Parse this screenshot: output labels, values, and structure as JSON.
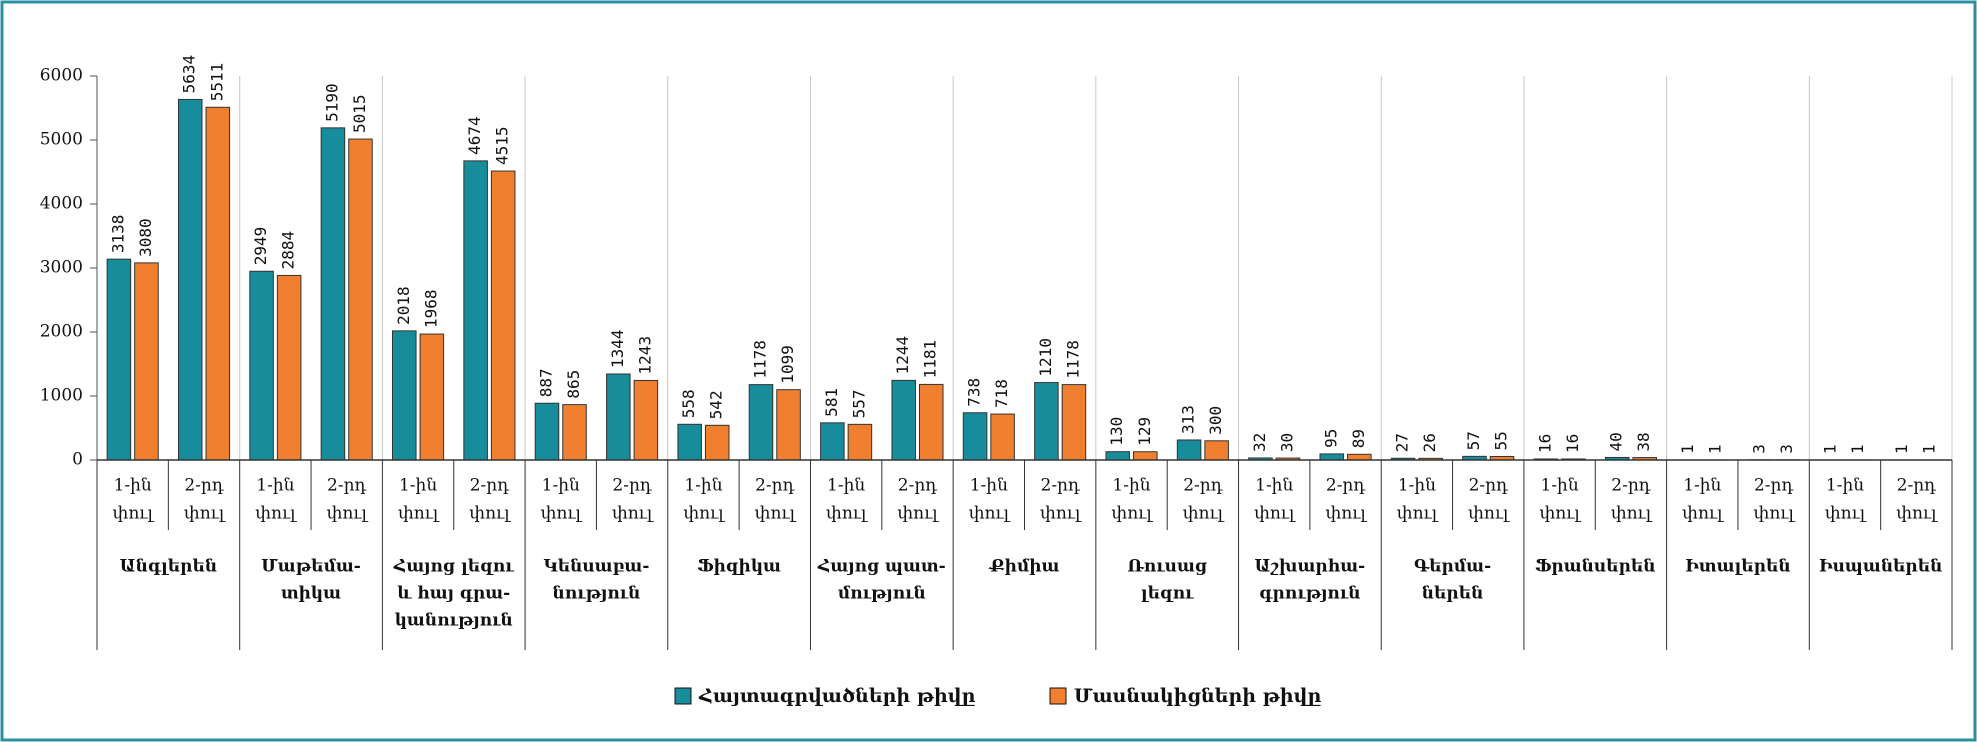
{
  "chart_data": {
    "type": "bar",
    "groups": [
      [
        "Անգլերեն"
      ],
      [
        "Մաթեմա-",
        "տիկա"
      ],
      [
        "Հայոց լեզու",
        "և հայ գրա-",
        "կանություն"
      ],
      [
        "Կենսաբա-",
        "նություն"
      ],
      [
        "Ֆիզիկա"
      ],
      [
        "Հայոց պատ-",
        "մություն"
      ],
      [
        "Քիմիա"
      ],
      [
        "Ռուսաց",
        "լեզու"
      ],
      [
        "Աշխարհա-",
        "գրություն"
      ],
      [
        "Գերմա-",
        "ներեն"
      ],
      [
        "Ֆրանսերեն"
      ],
      [
        "Իտալերեն"
      ],
      [
        "Իսպաներեն"
      ]
    ],
    "categories": [
      [
        "1-ին",
        "փուլ"
      ],
      [
        "2-րդ",
        "փուլ"
      ],
      [
        "1-ին",
        "փուլ"
      ],
      [
        "2-րդ",
        "փուլ"
      ],
      [
        "1-ին",
        "փուլ"
      ],
      [
        "2-րդ",
        "փուլ"
      ],
      [
        "1-ին",
        "փուլ"
      ],
      [
        "2-րդ",
        "փուլ"
      ],
      [
        "1-ին",
        "փուլ"
      ],
      [
        "2-րդ",
        "փուլ"
      ],
      [
        "1-ին",
        "փուլ"
      ],
      [
        "2-րդ",
        "փուլ"
      ],
      [
        "1-ին",
        "փուլ"
      ],
      [
        "2-րդ",
        "փուլ"
      ],
      [
        "1-ին",
        "փուլ"
      ],
      [
        "2-րդ",
        "փուլ"
      ],
      [
        "1-ին",
        "փուլ"
      ],
      [
        "2-րդ",
        "փուլ"
      ],
      [
        "1-ին",
        "փուլ"
      ],
      [
        "2-րդ",
        "փուլ"
      ],
      [
        "1-ին",
        "փուլ"
      ],
      [
        "2-րդ",
        "փուլ"
      ],
      [
        "1-ին",
        "փուլ"
      ],
      [
        "2-րդ",
        "փուլ"
      ],
      [
        "1-ին",
        "փուլ"
      ],
      [
        "2-րդ",
        "փուլ"
      ]
    ],
    "series": [
      {
        "name": "Հայտագրվածների թիվը",
        "color": "#178d9b",
        "values": [
          3138,
          5634,
          2949,
          5190,
          2018,
          4674,
          887,
          1344,
          558,
          1178,
          581,
          1244,
          738,
          1210,
          130,
          313,
          32,
          95,
          27,
          57,
          16,
          40,
          1,
          3,
          1,
          1
        ]
      },
      {
        "name": "Մասնակիցների թիվը",
        "color": "#f0802f",
        "values": [
          3080,
          5511,
          2884,
          5015,
          1968,
          4515,
          865,
          1243,
          542,
          1099,
          557,
          1181,
          718,
          1178,
          129,
          300,
          30,
          89,
          26,
          55,
          16,
          38,
          1,
          3,
          1,
          1
        ]
      }
    ],
    "ylim": [
      0,
      6000
    ],
    "yticks": [
      0,
      1000,
      2000,
      3000,
      4000,
      5000,
      6000
    ]
  }
}
